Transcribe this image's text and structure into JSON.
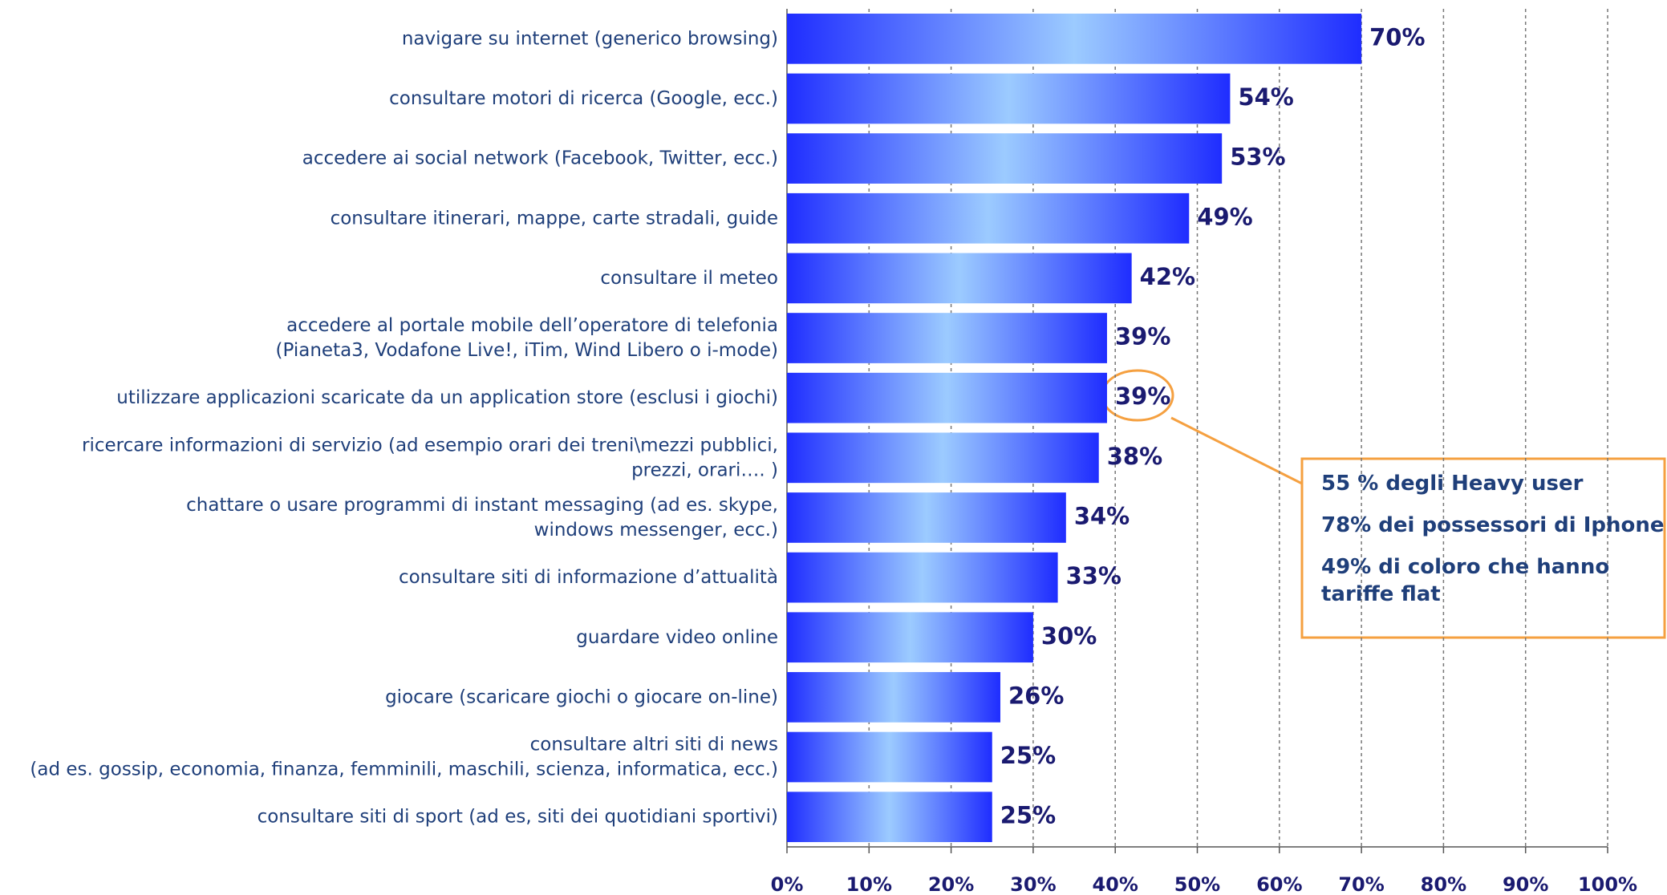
{
  "chart_data": {
    "type": "hbar",
    "categories": [
      "navigare su internet (generico browsing)",
      "consultare motori di ricerca (Google, ecc.)",
      "accedere ai social network (Facebook, Twitter, ecc.)",
      "consultare itinerari, mappe, carte stradali, guide",
      "consultare il meteo",
      "accedere al portale mobile dell’operatore di telefonia\n(Pianeta3, Vodafone Live!, iTim, Wind Libero o i-mode)",
      "utilizzare applicazioni scaricate da un application store (esclusi i giochi)",
      "ricercare informazioni di servizio (ad esempio orari dei treni\\mezzi pubblici,\nprezzi, orari…. )",
      "chattare o usare programmi di instant messaging (ad es. skype,\nwindows messenger, ecc.)",
      "consultare siti di informazione d’attualità",
      "guardare video online",
      "giocare (scaricare giochi o giocare on-line)",
      "consultare altri siti di news\n(ad es. gossip, economia, finanza, femminili, maschili, scienza, informatica, ecc.)",
      "consultare siti di sport (ad es, siti dei quotidiani sportivi)"
    ],
    "values": [
      70,
      54,
      53,
      49,
      42,
      39,
      39,
      38,
      34,
      33,
      30,
      26,
      25,
      25
    ],
    "value_labels": [
      "70%",
      "54%",
      "53%",
      "49%",
      "42%",
      "39%",
      "39%",
      "38%",
      "34%",
      "33%",
      "30%",
      "26%",
      "25%",
      "25%"
    ],
    "color": "#1f2dff",
    "xlim": [
      0,
      100
    ],
    "xticks": [
      {
        "value": 0,
        "label": "0%"
      },
      {
        "value": 10,
        "label": "10%"
      },
      {
        "value": 20,
        "label": "20%"
      },
      {
        "value": 30,
        "label": "30%"
      },
      {
        "value": 40,
        "label": "40%"
      },
      {
        "value": 50,
        "label": "50%"
      },
      {
        "value": 60,
        "label": "60%"
      },
      {
        "value": 70,
        "label": "70%"
      },
      {
        "value": 80,
        "label": "80%"
      },
      {
        "value": 90,
        "label": "90%"
      },
      {
        "value": 100,
        "label": "100%"
      }
    ],
    "grid": true,
    "annotations": [
      "55 % degli Heavy user",
      "78% dei possessori di Iphone",
      "49% di coloro che hanno\ntariffe flat"
    ]
  }
}
